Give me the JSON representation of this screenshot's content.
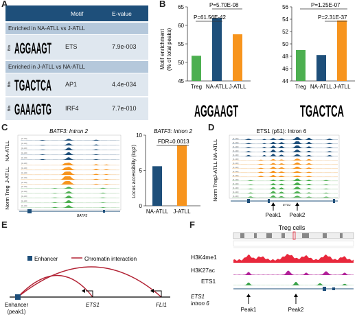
{
  "panels": {
    "a": "A",
    "b": "B",
    "c": "C",
    "d": "D",
    "e": "E",
    "f": "F"
  },
  "panel_a": {
    "headers": [
      "Motif",
      "E-value"
    ],
    "sections": [
      {
        "title": "Enriched in NA-ATLL vs J-ATLL",
        "rows": [
          {
            "logo": "AGGAAGT",
            "motif": "ETS",
            "evalue": "7.9e-003"
          }
        ]
      },
      {
        "title": "Enriched in J-ATLL vs NA-ATLL",
        "rows": [
          {
            "logo": "TGACTCA",
            "motif": "AP1",
            "evalue": "4.4e-034"
          },
          {
            "logo": "GAAAGTG",
            "motif": "IRF4",
            "evalue": "7.7e-010"
          }
        ]
      }
    ],
    "logo_axis": "Bits",
    "logo_ticks": [
      "1",
      "2",
      "3",
      "4",
      "5",
      "6",
      "7"
    ]
  },
  "panel_b": {
    "ylabel_line1": "Motif enrichment",
    "ylabel_line2": "(% of total peaks)",
    "categories": [
      "Treg",
      "NA-ATLL",
      "J-ATLL"
    ],
    "colors": {
      "Treg": "#4caf50",
      "NA-ATLL": "#1e4f7a",
      "J-ATLL": "#f7941d"
    },
    "left_logo": "AGGAAGT",
    "right_logo": "TGACTCA"
  },
  "chart_data": [
    {
      "type": "bar",
      "categories": [
        "Treg",
        "NA-ATLL",
        "J-ATLL"
      ],
      "values": [
        51.8,
        62.0,
        57.6
      ],
      "ylim": [
        45,
        65
      ],
      "yticks": [
        "45",
        "50",
        "55",
        "60",
        "65"
      ],
      "annotations": [
        "P=61.56E-42",
        "P=5.70E-08"
      ]
    },
    {
      "type": "bar",
      "categories": [
        "Treg",
        "NA-ATLL",
        "J-ATLL"
      ],
      "values": [
        49.0,
        48.2,
        53.8
      ],
      "ylim": [
        44,
        56
      ],
      "yticks": [
        "44",
        "46",
        "48",
        "50",
        "52",
        "54",
        "56"
      ],
      "annotations": [
        "P=1.25E-07",
        "P=2.31E-37"
      ]
    },
    {
      "type": "bar",
      "title": "BATF3: Intron 2",
      "categories": [
        "NA-ATLL",
        "J-ATLL"
      ],
      "values": [
        5.6,
        8.6
      ],
      "ylim": [
        0,
        10
      ],
      "yticks": [
        "0",
        "5",
        "10"
      ],
      "ylabel": "Locus accessibility (log2)",
      "annotations": [
        "FDR=0.0013"
      ]
    }
  ],
  "panel_c": {
    "track_title": "BATF3: Intron 2",
    "gene": "BATF3",
    "groups": [
      "NA-ATLL",
      "J-ATLL",
      "Norm Treg"
    ],
    "track_scale": "[0–100]",
    "bar_title": "BATF3: Intron 2",
    "ylabel": "Locus accessibility (log2)",
    "fdr": "FDR=0.0013",
    "categories": [
      "NA-ATLL",
      "J-ATLL"
    ]
  },
  "panel_d": {
    "title": "ETS1 (p51): Intron 6",
    "gene": "ETS1",
    "groups": [
      "NA-ATLL",
      "J-ATLL",
      "Norm Treg"
    ],
    "peaks": [
      "Peak1",
      "Peak2"
    ]
  },
  "panel_e": {
    "legend_enhancer": "Enhancer",
    "legend_interaction": "Chromatin interaction",
    "enhancer_label": "Enhancer",
    "enhancer_sub": "(peak1)",
    "genes": [
      "ETS1",
      "FLI1"
    ]
  },
  "panel_f": {
    "title": "Treg cells",
    "tracks": [
      "H3K4me1",
      "H3K27ac",
      "ETS1"
    ],
    "label_line1": "ETS1",
    "label_line2": "intron 6",
    "peaks": [
      "Peak1",
      "Peak2"
    ]
  }
}
